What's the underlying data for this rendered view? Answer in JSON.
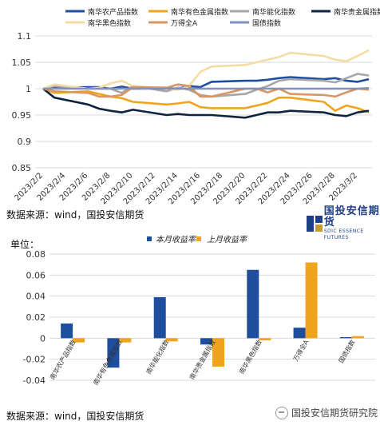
{
  "sources": {
    "top": "数据来源：wind，国投安信期货",
    "bottom": "数据来源：wind，国投安信期货"
  },
  "logo": {
    "cn": "国投安信期货",
    "en": "SDIC ESSENCE FUTURES"
  },
  "watermark": {
    "text": "国投安信期货研究院"
  },
  "chart_data": [
    {
      "type": "line",
      "title": "",
      "ylim": [
        0.85,
        1.1
      ],
      "yticks": [
        "0.85",
        "0.9",
        "0.95",
        "1",
        "1.05",
        "1.1"
      ],
      "ytick_values": [
        0.85,
        0.9,
        0.95,
        1.0,
        1.05,
        1.1
      ],
      "grid": "horizontal",
      "legend_position": "top",
      "x_labels": [
        "2023/2/2",
        "2023/2/4",
        "2023/2/6",
        "2023/2/8",
        "2023/2/10",
        "2023/2/12",
        "2023/2/14",
        "2023/2/16",
        "2023/2/18",
        "2023/2/20",
        "2023/2/22",
        "2023/2/24",
        "2023/2/26",
        "2023/2/28",
        "2023/3/2"
      ],
      "x": [
        "2023/2/2",
        "2023/2/3",
        "2023/2/6",
        "2023/2/7",
        "2023/2/8",
        "2023/2/9",
        "2023/2/10",
        "2023/2/13",
        "2023/2/14",
        "2023/2/15",
        "2023/2/16",
        "2023/2/17",
        "2023/2/20",
        "2023/2/21",
        "2023/2/22",
        "2023/2/23",
        "2023/2/24",
        "2023/2/27",
        "2023/2/28",
        "2023/3/1",
        "2023/3/2",
        "2023/3/3"
      ],
      "series": [
        {
          "name": "南华农产品指数",
          "color": "#1f4e9e",
          "values": [
            1.0,
            1.002,
            1.003,
            1.003,
            1.0,
            1.004,
            1.0,
            1.001,
            1.0,
            1.005,
            1.003,
            1.013,
            1.015,
            1.015,
            1.017,
            1.02,
            1.022,
            1.018,
            1.02,
            1.015,
            1.013,
            1.018
          ]
        },
        {
          "name": "南华有色金属指数",
          "color": "#f0a41c",
          "values": [
            1.0,
            0.992,
            0.995,
            0.99,
            0.985,
            0.982,
            0.975,
            0.97,
            0.972,
            0.975,
            0.965,
            0.963,
            0.963,
            0.968,
            0.973,
            0.983,
            0.983,
            0.975,
            0.958,
            0.968,
            0.963,
            0.955
          ]
        },
        {
          "name": "南华能化指数",
          "color": "#a6a6a6",
          "values": [
            1.0,
            1.005,
            1.0,
            1.0,
            1.0,
            0.992,
            1.005,
            0.995,
            1.002,
            0.998,
            0.988,
            0.985,
            0.99,
            0.998,
            1.005,
            1.015,
            1.018,
            1.015,
            1.012,
            1.02,
            1.028,
            1.025
          ]
        },
        {
          "name": "南华贵金属指数",
          "color": "#0d2340",
          "values": [
            1.0,
            0.983,
            0.97,
            0.962,
            0.958,
            0.955,
            0.96,
            0.95,
            0.952,
            0.95,
            0.95,
            0.95,
            0.945,
            0.95,
            0.955,
            0.955,
            0.958,
            0.955,
            0.95,
            0.948,
            0.955,
            0.958
          ]
        },
        {
          "name": "南华黑色指数",
          "color": "#f5dca5",
          "values": [
            1.0,
            1.008,
            1.0,
            1.002,
            1.01,
            1.015,
            1.005,
            1.0,
            0.998,
            1.005,
            1.032,
            1.042,
            1.045,
            1.05,
            1.055,
            1.06,
            1.068,
            1.062,
            1.055,
            1.052,
            1.062,
            1.073
          ]
        },
        {
          "name": "万得全A",
          "color": "#d79761",
          "values": [
            1.0,
            0.995,
            0.992,
            0.985,
            0.985,
            0.988,
            1.003,
            1.002,
            1.008,
            1.005,
            0.985,
            0.985,
            1.0,
            1.0,
            0.993,
            1.0,
            0.99,
            0.988,
            0.985,
            0.993,
            1.0,
            0.998
          ]
        },
        {
          "name": "国债指数",
          "color": "#8090c0",
          "values": [
            1.0,
            1.0,
            1.0,
            1.0,
            1.0,
            1.0,
            1.0,
            1.0,
            1.0,
            1.0,
            1.0,
            1.0,
            1.0,
            1.0,
            1.0,
            1.0,
            1.0,
            1.0,
            1.0,
            1.0,
            1.0,
            1.001
          ]
        }
      ]
    },
    {
      "type": "bar",
      "title": "",
      "ylabel": "单位：",
      "ylim": [
        -0.04,
        0.08
      ],
      "yticks": [
        "-0.04",
        "-0.02",
        "0",
        "0.02",
        "0.04",
        "0.06",
        "0.08"
      ],
      "ytick_values": [
        -0.04,
        -0.02,
        0,
        0.02,
        0.04,
        0.06,
        0.08
      ],
      "grid": "horizontal",
      "legend_position": "top",
      "categories": [
        "南华农产品指数",
        "南华有色金属指数",
        "南华能化指数",
        "南华贵金属指数",
        "南华黑色指数",
        "万得全A",
        "国债指数"
      ],
      "series": [
        {
          "name": "本月收益率",
          "color": "#1f4e9e",
          "values": [
            0.014,
            -0.028,
            0.039,
            -0.006,
            0.065,
            0.01,
            0.001
          ]
        },
        {
          "name": "上月收益率",
          "color": "#f0a41c",
          "values": [
            -0.004,
            -0.004,
            -0.003,
            -0.027,
            -0.002,
            0.072,
            0.002
          ]
        }
      ]
    }
  ]
}
